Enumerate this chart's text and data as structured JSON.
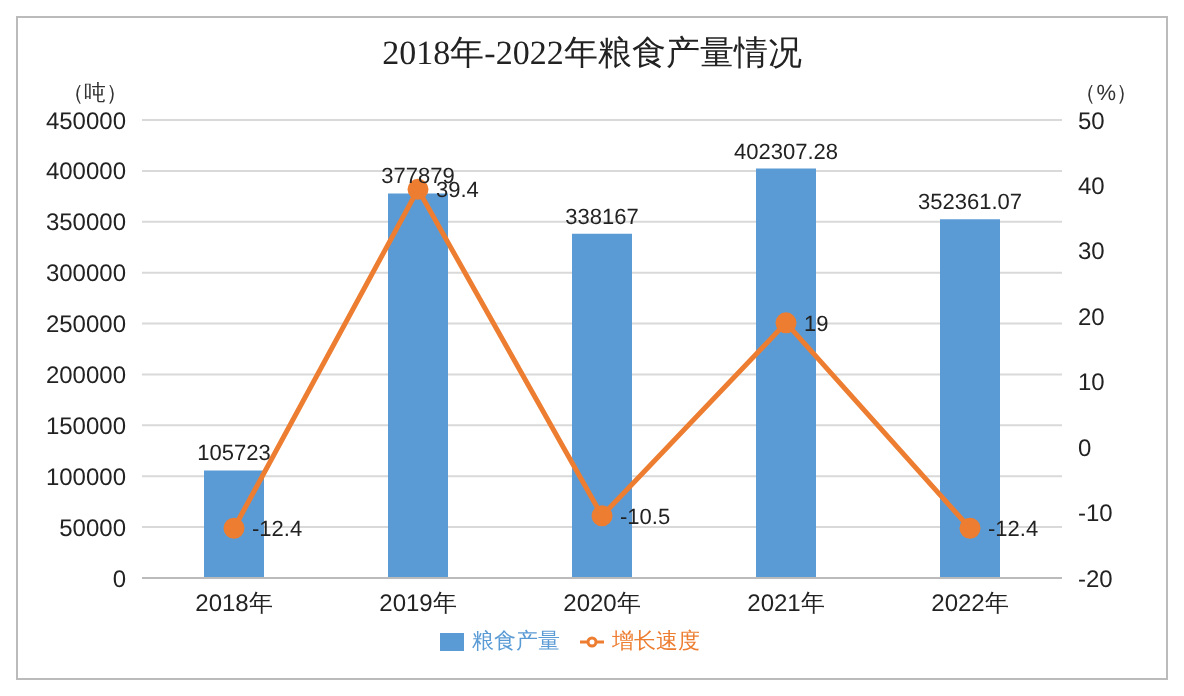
{
  "chart_data": {
    "type": "bar",
    "title": "2018年-2022年粮食产量情况",
    "ylabel": "（吨）",
    "y2label": "（%）",
    "categories": [
      "2018年",
      "2019年",
      "2020年",
      "2021年",
      "2022年"
    ],
    "series": [
      {
        "name": "粮食产量",
        "color": "#5b9bd5",
        "values": [
          105723,
          377879,
          338167,
          402307.28,
          352361.07
        ]
      },
      {
        "name": "增长速度",
        "type": "line",
        "axis": "y2",
        "color": "#ed7d31",
        "values": [
          -12.4,
          39.4,
          -10.5,
          19,
          -12.4
        ]
      }
    ],
    "ylim": [
      0,
      450000
    ],
    "yticks": [
      0,
      50000,
      100000,
      150000,
      200000,
      250000,
      300000,
      350000,
      400000,
      450000
    ],
    "y2lim": [
      -20,
      50
    ],
    "y2ticks": [
      -20,
      -10,
      0,
      10,
      20,
      30,
      40,
      50
    ],
    "grid": "y",
    "legend": "bottom",
    "marker": "circle",
    "data_labels": true
  }
}
